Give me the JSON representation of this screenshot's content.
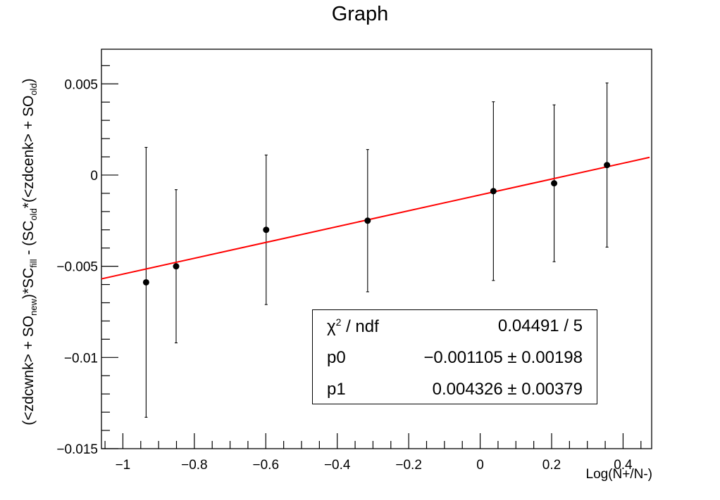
{
  "title": "Graph",
  "ylabel": {
    "prefix": "(<zdcwnk> + SO",
    "sub1": "new",
    "mid1": ")*SC",
    "sub2": "fill",
    "mid2": " - (SC",
    "sub3": "old",
    "mid3": "*(<zdcenk> + SO",
    "sub4": "old",
    "suffix": ")"
  },
  "stats": {
    "chi2_label_greek": "χ",
    "chi2_label_sup": "2",
    "chi2_label_rest": " / ndf",
    "chi2_value": "0.04491 / 5",
    "p0_label": "p0",
    "p0_value": "−0.001105 ± 0.00198",
    "p1_label": "p1",
    "p1_value": "0.004326 ± 0.00379"
  },
  "colors": {
    "fit_line": "#ff0000",
    "points": "#000000",
    "axes": "#000000"
  },
  "chart_data": {
    "type": "scatter",
    "title": "Graph",
    "xlabel": "Log(N+/N-)",
    "ylabel": "(<zdcwnk> + SO_new)*SC_fill - (SC_old*(<zdcenk> + SO_old)",
    "xlim": [
      -1.06,
      0.48
    ],
    "ylim": [
      -0.015,
      0.0069
    ],
    "x_ticks": [
      -1,
      -0.8,
      -0.6,
      -0.4,
      -0.2,
      0,
      0.2,
      0.4
    ],
    "x_tick_labels": [
      "−1",
      "−0.8",
      "−0.6",
      "−0.4",
      "−0.2",
      "0",
      "0.2",
      "0.4"
    ],
    "y_ticks": [
      -0.015,
      -0.01,
      -0.005,
      0,
      0.005
    ],
    "y_tick_labels": [
      "−0.015",
      "−0.01",
      "−0.005",
      "0",
      "0.005"
    ],
    "grid": false,
    "points": [
      {
        "x": -0.935,
        "y": -0.00588,
        "err": 0.0074
      },
      {
        "x": -0.851,
        "y": -0.005,
        "err": 0.0042
      },
      {
        "x": -0.599,
        "y": -0.003,
        "err": 0.0041
      },
      {
        "x": -0.315,
        "y": -0.0025,
        "err": 0.0039
      },
      {
        "x": 0.037,
        "y": -0.00088,
        "err": 0.0049
      },
      {
        "x": 0.207,
        "y": -0.00045,
        "err": 0.0043
      },
      {
        "x": 0.355,
        "y": 0.00055,
        "err": 0.0045
      }
    ],
    "fit": {
      "type": "linear",
      "p0": -0.001105,
      "p1": 0.004326,
      "x_range": [
        -1.06,
        0.48
      ]
    }
  }
}
